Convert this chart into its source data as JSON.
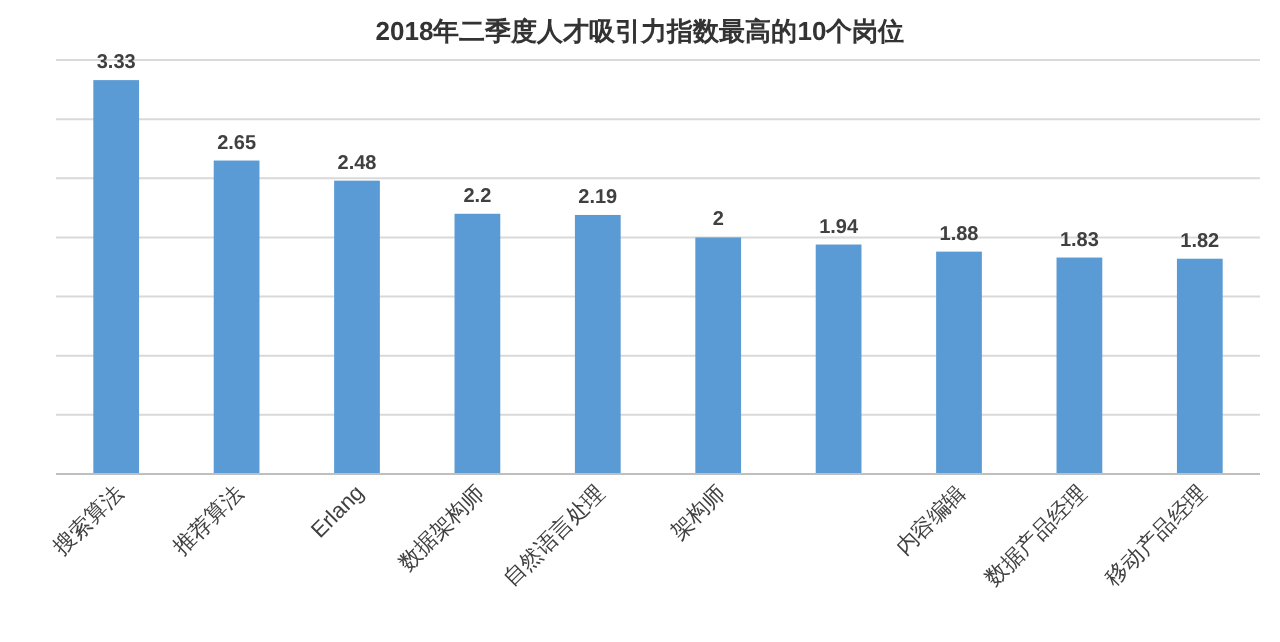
{
  "chart_data": {
    "type": "bar",
    "title": "2018年二季度人才吸引力指数最高的10个岗位",
    "categories": [
      "搜索算法",
      "推荐算法",
      "Erlang",
      "数据架构师",
      "自然语言处理",
      "架构师",
      null,
      "内容编辑",
      "数据产品经理",
      "移动产品经理"
    ],
    "values": [
      3.33,
      2.65,
      2.48,
      2.2,
      2.19,
      2,
      1.94,
      1.88,
      1.83,
      1.82
    ],
    "color": "#5b9bd5",
    "data_labels": true,
    "grid": "y",
    "tick_labels": "x",
    "ylim": [
      0,
      3.5
    ],
    "yticks": [
      {
        "value": 0,
        "label": null
      },
      {
        "value": 0.5,
        "label": null
      },
      {
        "value": 1,
        "label": null
      },
      {
        "value": 1.5,
        "label": null
      },
      {
        "value": 2,
        "label": null
      },
      {
        "value": 2.5,
        "label": null
      },
      {
        "value": 3,
        "label": null
      },
      {
        "value": 3.5,
        "label": null
      }
    ]
  }
}
